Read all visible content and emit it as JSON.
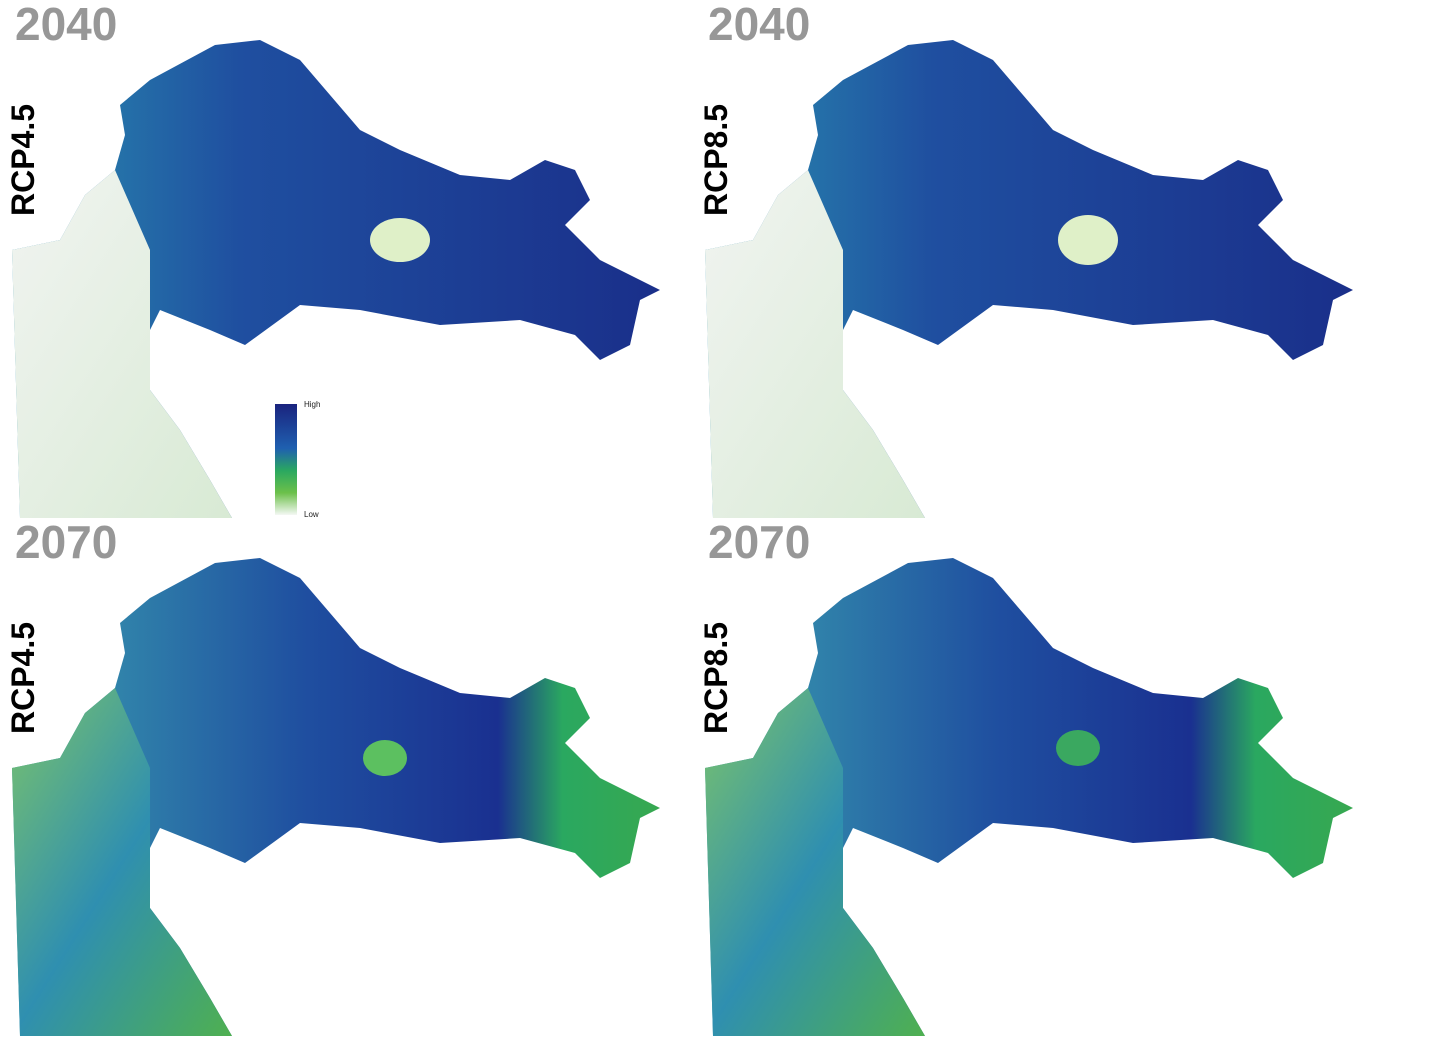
{
  "panels": [
    {
      "year": "2040",
      "scenario": "RCP4.5"
    },
    {
      "year": "2040",
      "scenario": "RCP8.5"
    },
    {
      "year": "2070",
      "scenario": "RCP4.5"
    },
    {
      "year": "2070",
      "scenario": "RCP8.5"
    }
  ],
  "legend": {
    "high": "High",
    "low": "Low"
  }
}
